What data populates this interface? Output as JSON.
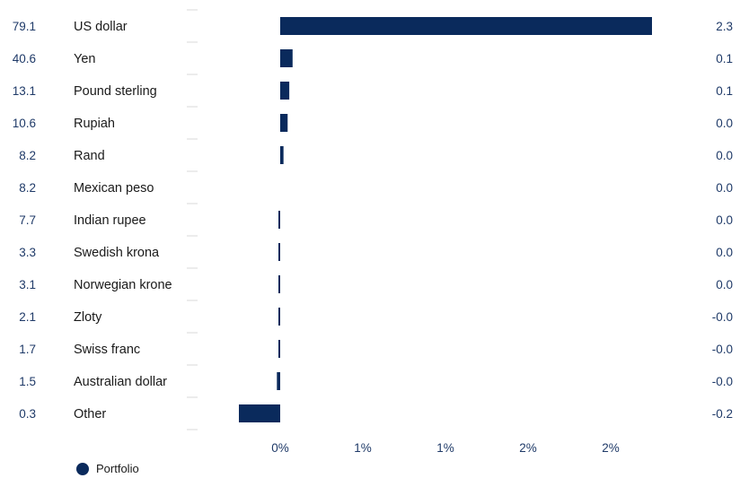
{
  "chart_data": {
    "type": "bar",
    "orientation": "horizontal",
    "categories": [
      "US dollar",
      "Yen",
      "Pound sterling",
      "Rupiah",
      "Rand",
      "Mexican peso",
      "Indian rupee",
      "Swedish krona",
      "Norwegian krone",
      "Zloty",
      "Swiss franc",
      "Australian dollar",
      "Other"
    ],
    "left_values": [
      "79.1",
      "40.6",
      "13.1",
      "10.6",
      "8.2",
      "8.2",
      "7.7",
      "3.3",
      "3.1",
      "2.1",
      "1.7",
      "1.5",
      "0.3"
    ],
    "right_values": [
      "2.3",
      "0.1",
      "0.1",
      "0.0",
      "0.0",
      "0.0",
      "0.0",
      "0.0",
      "0.0",
      "-0.0",
      "-0.0",
      "-0.0",
      "-0.2"
    ],
    "series": [
      {
        "name": "Portfolio",
        "values": [
          2.25,
          0.075,
          0.055,
          0.045,
          0.02,
          0.0,
          -0.005,
          -0.005,
          -0.005,
          -0.006,
          -0.007,
          -0.02,
          -0.25
        ]
      }
    ],
    "x_ticks": [
      0,
      0.5,
      1.0,
      1.5,
      2.0
    ],
    "x_tick_labels": [
      "0%",
      "1%",
      "1%",
      "2%",
      "2%"
    ],
    "xlim": [
      -0.6,
      2.5
    ],
    "grid": "horizontal row separators in the label area",
    "legend_position": "bottom-left",
    "colors": {
      "bar": "#0a2a5c",
      "value_text": "#1f3a68",
      "grid": "#d9d9d9"
    }
  }
}
